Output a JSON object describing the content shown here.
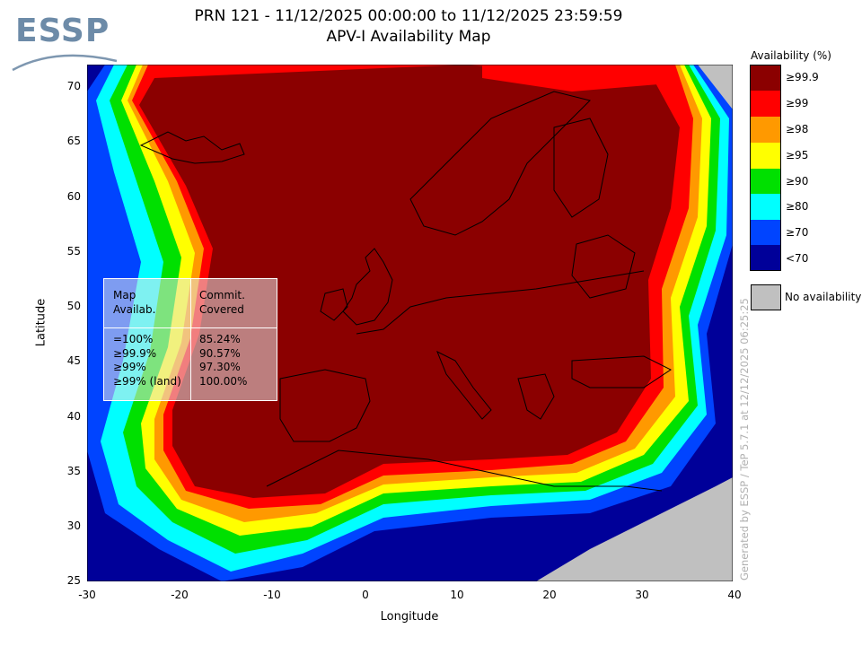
{
  "header": {
    "title_line1": "PRN 121 - 11/12/2025 00:00:00 to 11/12/2025 23:59:59",
    "title_line2": "APV-I Availability Map",
    "logo_text": "ESSP"
  },
  "axes": {
    "xlabel": "Longitude",
    "ylabel": "Latitude",
    "x_ticks": [
      "-30",
      "-20",
      "-10",
      "0",
      "10",
      "20",
      "30",
      "40"
    ],
    "y_ticks": [
      "70",
      "65",
      "60",
      "55",
      "50",
      "45",
      "40",
      "35",
      "30",
      "25"
    ],
    "lon_range": [
      -30,
      40
    ],
    "lat_range": [
      25,
      72
    ]
  },
  "stats_box": {
    "col1_header_1": "Map",
    "col1_header_2": "Availab.",
    "col2_header_1": "Commit.",
    "col2_header_2": "Covered",
    "rows": [
      {
        "label": "=100%",
        "value": "85.24%"
      },
      {
        "label": "≥99.9%",
        "value": "90.57%"
      },
      {
        "label": "≥99%",
        "value": "97.30%"
      },
      {
        "label": "≥99% (land)",
        "value": "100.00%"
      }
    ]
  },
  "legend": {
    "title": "Availability (%)",
    "items": [
      {
        "label": "≥99.9",
        "color": "#8b0000"
      },
      {
        "label": "≥99",
        "color": "#ff0000"
      },
      {
        "label": "≥98",
        "color": "#ff9900"
      },
      {
        "label": "≥95",
        "color": "#ffff00"
      },
      {
        "label": "≥90",
        "color": "#00e000"
      },
      {
        "label": "≥80",
        "color": "#00ffff"
      },
      {
        "label": "≥70",
        "color": "#0044ff"
      },
      {
        "label": "<70",
        "color": "#000099"
      }
    ],
    "no_availability_label": "No availability",
    "no_availability_color": "#c0c0c0"
  },
  "footer_vertical": "Generated by ESSP / TeP 5.7.1 at 12/12/2025 06:25:25"
}
